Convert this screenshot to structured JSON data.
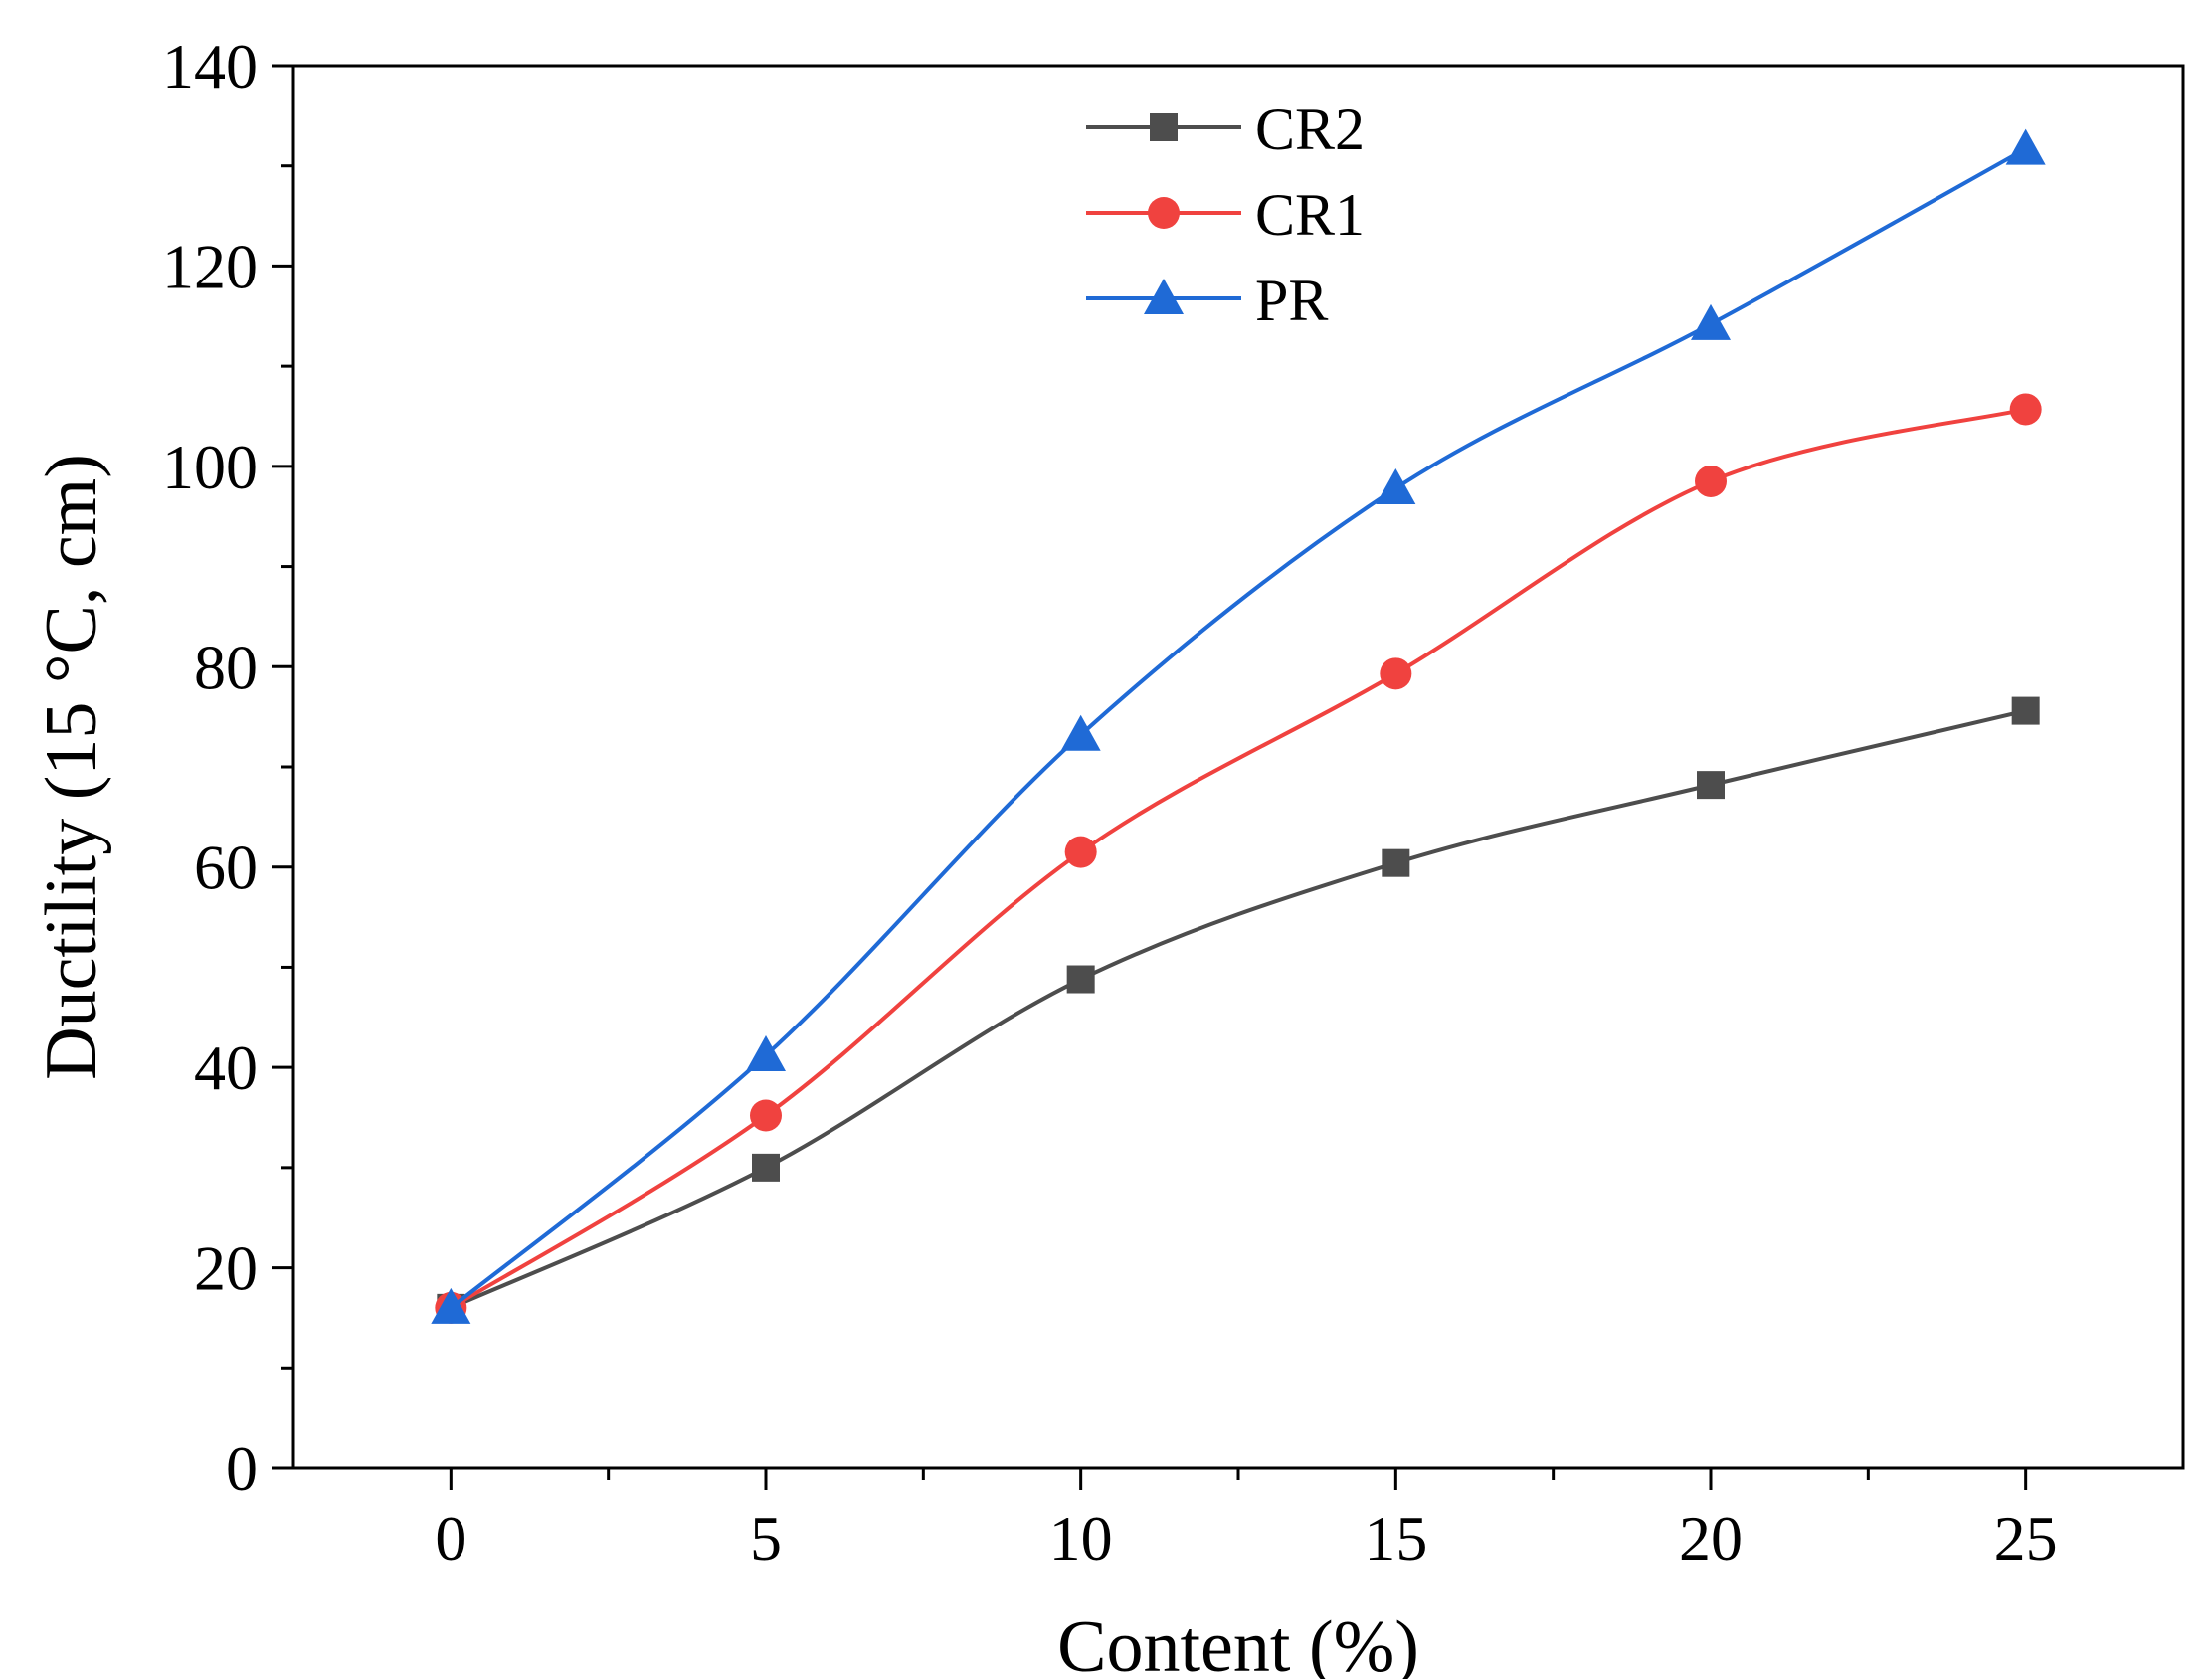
{
  "chart_data": {
    "type": "line",
    "xlabel": "Content (%)",
    "ylabel": "Ductility (15 °C, cm)",
    "x": [
      0,
      5,
      10,
      15,
      20,
      25
    ],
    "xlim": [
      -2.5,
      27.5
    ],
    "ylim": [
      0,
      140
    ],
    "xticks": [
      0,
      5,
      10,
      15,
      20,
      25
    ],
    "xticks_minor": [
      2.5,
      7.5,
      12.5,
      17.5,
      22.5
    ],
    "yticks": [
      0,
      20,
      40,
      60,
      80,
      100,
      120,
      140
    ],
    "yticks_minor": [
      10,
      30,
      50,
      70,
      90,
      110,
      130
    ],
    "grid": false,
    "legend_position": "top-center",
    "series": [
      {
        "name": "CR2",
        "values": [
          16,
          30,
          48.8,
          60.4,
          68.2,
          75.6
        ],
        "color": "#4d4d4d",
        "marker": "square"
      },
      {
        "name": "CR1",
        "values": [
          16,
          35.2,
          61.5,
          79.3,
          98.5,
          105.7
        ],
        "color": "#f0423f",
        "marker": "circle"
      },
      {
        "name": "PR",
        "values": [
          16,
          41.2,
          73.2,
          97.8,
          114.2,
          131.7
        ],
        "color": "#1f6ad6",
        "marker": "triangle"
      }
    ]
  }
}
